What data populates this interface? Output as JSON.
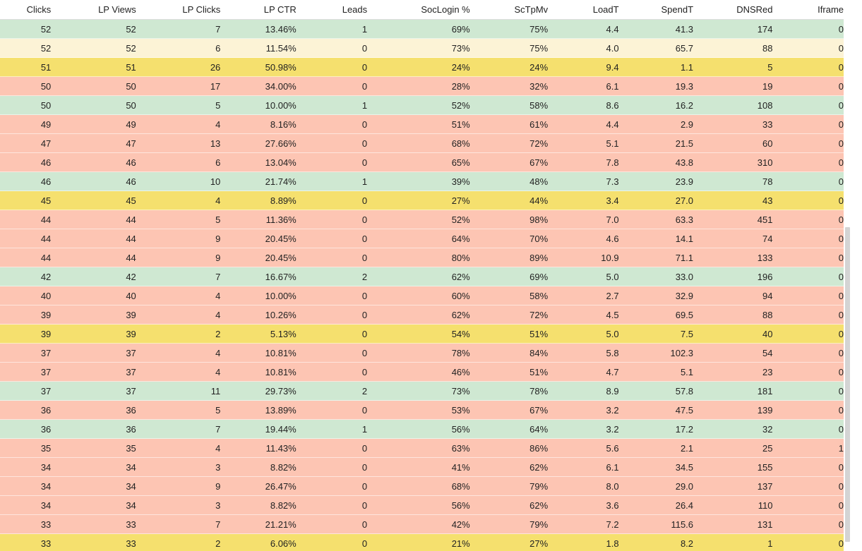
{
  "table": {
    "columns": [
      "Clicks",
      "LP Views",
      "LP Clicks",
      "LP CTR",
      "Leads",
      "SocLogin %",
      "ScTpMv",
      "LoadT",
      "SpendT",
      "DNSRed",
      "Iframe"
    ],
    "rows": [
      {
        "status": "green",
        "cells": [
          "52",
          "52",
          "7",
          "13.46%",
          "1",
          "69%",
          "75%",
          "4.4",
          "41.3",
          "174",
          "0"
        ]
      },
      {
        "status": "lightyellow",
        "cells": [
          "52",
          "52",
          "6",
          "11.54%",
          "0",
          "73%",
          "75%",
          "4.0",
          "65.7",
          "88",
          "0"
        ]
      },
      {
        "status": "yellow",
        "cells": [
          "51",
          "51",
          "26",
          "50.98%",
          "0",
          "24%",
          "24%",
          "9.4",
          "1.1",
          "5",
          "0"
        ]
      },
      {
        "status": "red",
        "cells": [
          "50",
          "50",
          "17",
          "34.00%",
          "0",
          "28%",
          "32%",
          "6.1",
          "19.3",
          "19",
          "0"
        ]
      },
      {
        "status": "green",
        "cells": [
          "50",
          "50",
          "5",
          "10.00%",
          "1",
          "52%",
          "58%",
          "8.6",
          "16.2",
          "108",
          "0"
        ]
      },
      {
        "status": "red",
        "cells": [
          "49",
          "49",
          "4",
          "8.16%",
          "0",
          "51%",
          "61%",
          "4.4",
          "2.9",
          "33",
          "0"
        ]
      },
      {
        "status": "red",
        "cells": [
          "47",
          "47",
          "13",
          "27.66%",
          "0",
          "68%",
          "72%",
          "5.1",
          "21.5",
          "60",
          "0"
        ]
      },
      {
        "status": "red",
        "cells": [
          "46",
          "46",
          "6",
          "13.04%",
          "0",
          "65%",
          "67%",
          "7.8",
          "43.8",
          "310",
          "0"
        ]
      },
      {
        "status": "green",
        "cells": [
          "46",
          "46",
          "10",
          "21.74%",
          "1",
          "39%",
          "48%",
          "7.3",
          "23.9",
          "78",
          "0"
        ]
      },
      {
        "status": "yellow",
        "cells": [
          "45",
          "45",
          "4",
          "8.89%",
          "0",
          "27%",
          "44%",
          "3.4",
          "27.0",
          "43",
          "0"
        ]
      },
      {
        "status": "red",
        "cells": [
          "44",
          "44",
          "5",
          "11.36%",
          "0",
          "52%",
          "98%",
          "7.0",
          "63.3",
          "451",
          "0"
        ]
      },
      {
        "status": "red",
        "cells": [
          "44",
          "44",
          "9",
          "20.45%",
          "0",
          "64%",
          "70%",
          "4.6",
          "14.1",
          "74",
          "0"
        ]
      },
      {
        "status": "red",
        "cells": [
          "44",
          "44",
          "9",
          "20.45%",
          "0",
          "80%",
          "89%",
          "10.9",
          "71.1",
          "133",
          "0"
        ]
      },
      {
        "status": "green",
        "cells": [
          "42",
          "42",
          "7",
          "16.67%",
          "2",
          "62%",
          "69%",
          "5.0",
          "33.0",
          "196",
          "0"
        ]
      },
      {
        "status": "red",
        "cells": [
          "40",
          "40",
          "4",
          "10.00%",
          "0",
          "60%",
          "58%",
          "2.7",
          "32.9",
          "94",
          "0"
        ]
      },
      {
        "status": "red",
        "cells": [
          "39",
          "39",
          "4",
          "10.26%",
          "0",
          "62%",
          "72%",
          "4.5",
          "69.5",
          "88",
          "0"
        ]
      },
      {
        "status": "yellow",
        "cells": [
          "39",
          "39",
          "2",
          "5.13%",
          "0",
          "54%",
          "51%",
          "5.0",
          "7.5",
          "40",
          "0"
        ]
      },
      {
        "status": "red",
        "cells": [
          "37",
          "37",
          "4",
          "10.81%",
          "0",
          "78%",
          "84%",
          "5.8",
          "102.3",
          "54",
          "0"
        ]
      },
      {
        "status": "red",
        "cells": [
          "37",
          "37",
          "4",
          "10.81%",
          "0",
          "46%",
          "51%",
          "4.7",
          "5.1",
          "23",
          "0"
        ]
      },
      {
        "status": "green",
        "cells": [
          "37",
          "37",
          "11",
          "29.73%",
          "2",
          "73%",
          "78%",
          "8.9",
          "57.8",
          "181",
          "0"
        ]
      },
      {
        "status": "red",
        "cells": [
          "36",
          "36",
          "5",
          "13.89%",
          "0",
          "53%",
          "67%",
          "3.2",
          "47.5",
          "139",
          "0"
        ]
      },
      {
        "status": "green",
        "cells": [
          "36",
          "36",
          "7",
          "19.44%",
          "1",
          "56%",
          "64%",
          "3.2",
          "17.2",
          "32",
          "0"
        ]
      },
      {
        "status": "red",
        "cells": [
          "35",
          "35",
          "4",
          "11.43%",
          "0",
          "63%",
          "86%",
          "5.6",
          "2.1",
          "25",
          "1"
        ]
      },
      {
        "status": "red",
        "cells": [
          "34",
          "34",
          "3",
          "8.82%",
          "0",
          "41%",
          "62%",
          "6.1",
          "34.5",
          "155",
          "0"
        ]
      },
      {
        "status": "red",
        "cells": [
          "34",
          "34",
          "9",
          "26.47%",
          "0",
          "68%",
          "79%",
          "8.0",
          "29.0",
          "137",
          "0"
        ]
      },
      {
        "status": "red",
        "cells": [
          "34",
          "34",
          "3",
          "8.82%",
          "0",
          "56%",
          "62%",
          "3.6",
          "26.4",
          "110",
          "0"
        ]
      },
      {
        "status": "red",
        "cells": [
          "33",
          "33",
          "7",
          "21.21%",
          "0",
          "42%",
          "79%",
          "7.2",
          "115.6",
          "131",
          "0"
        ]
      },
      {
        "status": "yellow",
        "cells": [
          "33",
          "33",
          "2",
          "6.06%",
          "0",
          "21%",
          "27%",
          "1.8",
          "8.2",
          "1",
          "0"
        ]
      }
    ]
  },
  "colors": {
    "green": "#cfe8d2",
    "lightyellow": "#fcf3d6",
    "yellow": "#f5e06e",
    "red": "#fdc5b3"
  }
}
